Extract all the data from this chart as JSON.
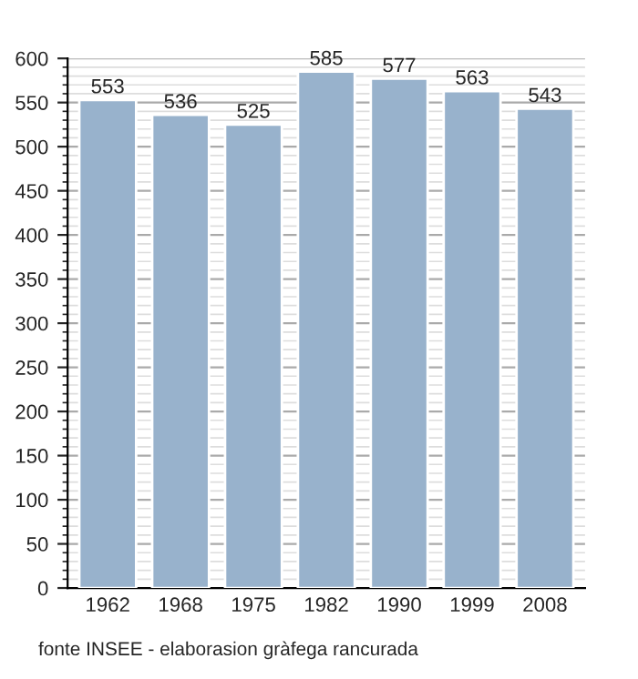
{
  "chart_data": {
    "type": "bar",
    "categories": [
      "1962",
      "1968",
      "1975",
      "1982",
      "1990",
      "1999",
      "2008"
    ],
    "values": [
      553,
      536,
      525,
      585,
      577,
      563,
      543
    ],
    "color": "#98b2cc",
    "data_labels": true,
    "ylim": [
      0,
      600
    ],
    "yticks": [
      0,
      50,
      100,
      150,
      200,
      250,
      300,
      350,
      400,
      450,
      500,
      550,
      600
    ],
    "grid": "y",
    "annotations": [
      "fonte INSEE - elaborasion gràfega rancurada"
    ]
  }
}
